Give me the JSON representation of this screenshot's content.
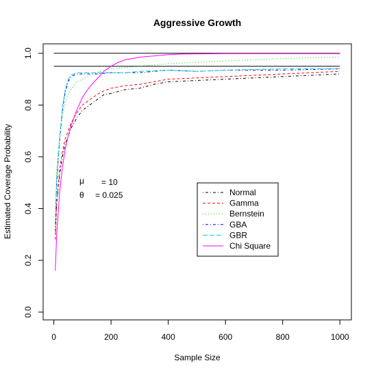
{
  "chart_data": {
    "type": "line",
    "title": "Aggressive Growth",
    "xlabel": "Sample Size",
    "ylabel": "Estimated Coverage Probability",
    "xlim": [
      0,
      1000
    ],
    "ylim": [
      0,
      1.0
    ],
    "xticks": [
      0,
      200,
      400,
      600,
      800,
      1000
    ],
    "xtick_labels": [
      "0",
      "200",
      "400",
      "600",
      "800",
      "1000"
    ],
    "yticks": [
      0.0,
      0.2,
      0.4,
      0.6,
      0.8,
      1.0
    ],
    "ytick_labels": [
      "0.0",
      "0.2",
      "0.4",
      "0.6",
      "0.8",
      "1.0"
    ],
    "grid": false,
    "legend_position": "center-right",
    "reference_lines": [
      1.0,
      0.95
    ],
    "annotations": [
      {
        "symbol": "μ",
        "value": "= 10"
      },
      {
        "symbol": "θ",
        "value": "= 0.025"
      }
    ],
    "series": [
      {
        "name": "Normal",
        "color": "#000000",
        "dash": "dotdash",
        "x": [
          5,
          10,
          20,
          30,
          40,
          50,
          60,
          80,
          100,
          125,
          150,
          175,
          200,
          250,
          300,
          350,
          400,
          500,
          600,
          700,
          800,
          900,
          1000
        ],
        "y": [
          0.3,
          0.42,
          0.53,
          0.6,
          0.65,
          0.68,
          0.71,
          0.75,
          0.78,
          0.8,
          0.82,
          0.84,
          0.845,
          0.86,
          0.865,
          0.88,
          0.89,
          0.895,
          0.9,
          0.905,
          0.91,
          0.915,
          0.92
        ]
      },
      {
        "name": "Gamma",
        "color": "#ff0000",
        "dash": "dashed",
        "x": [
          5,
          10,
          20,
          30,
          40,
          50,
          60,
          80,
          100,
          125,
          150,
          175,
          200,
          250,
          300,
          350,
          400,
          500,
          600,
          700,
          800,
          900,
          1000
        ],
        "y": [
          0.28,
          0.42,
          0.55,
          0.62,
          0.67,
          0.7,
          0.73,
          0.77,
          0.8,
          0.82,
          0.84,
          0.855,
          0.865,
          0.875,
          0.88,
          0.89,
          0.9,
          0.905,
          0.91,
          0.915,
          0.92,
          0.925,
          0.93
        ]
      },
      {
        "name": "Bernstein",
        "color": "#00cc00",
        "dash": "dotted",
        "x": [
          5,
          10,
          20,
          30,
          40,
          50,
          60,
          80,
          100,
          125,
          150,
          175,
          200,
          250,
          300,
          400,
          500,
          600,
          700,
          800,
          900,
          1000
        ],
        "y": [
          0.4,
          0.55,
          0.68,
          0.76,
          0.81,
          0.84,
          0.86,
          0.89,
          0.9,
          0.915,
          0.925,
          0.935,
          0.94,
          0.945,
          0.95,
          0.96,
          0.965,
          0.97,
          0.975,
          0.98,
          0.983,
          0.985
        ]
      },
      {
        "name": "GBA",
        "color": "#0000ff",
        "dash": "dotdash",
        "x": [
          5,
          10,
          20,
          30,
          40,
          50,
          60,
          70,
          80,
          100,
          150,
          200,
          250,
          300,
          400,
          500,
          600,
          800,
          1000
        ],
        "y": [
          0.33,
          0.5,
          0.66,
          0.78,
          0.85,
          0.89,
          0.91,
          0.915,
          0.92,
          0.92,
          0.92,
          0.925,
          0.925,
          0.925,
          0.935,
          0.93,
          0.935,
          0.935,
          0.94
        ]
      },
      {
        "name": "GBR",
        "color": "#00cccc",
        "dash": "longdash",
        "x": [
          5,
          10,
          20,
          30,
          40,
          50,
          60,
          70,
          80,
          100,
          150,
          200,
          250,
          300,
          400,
          500,
          600,
          800,
          1000
        ],
        "y": [
          0.34,
          0.51,
          0.67,
          0.79,
          0.86,
          0.9,
          0.915,
          0.92,
          0.925,
          0.925,
          0.925,
          0.925,
          0.925,
          0.93,
          0.935,
          0.93,
          0.935,
          0.94,
          0.94
        ]
      },
      {
        "name": "Chi Square",
        "color": "#ff00ff",
        "dash": "solid",
        "x": [
          5,
          10,
          20,
          30,
          40,
          50,
          60,
          80,
          100,
          125,
          150,
          175,
          200,
          225,
          250,
          300,
          350,
          400,
          450,
          500,
          600,
          700,
          800,
          900,
          1000
        ],
        "y": [
          0.16,
          0.3,
          0.46,
          0.56,
          0.63,
          0.68,
          0.72,
          0.78,
          0.83,
          0.87,
          0.9,
          0.93,
          0.95,
          0.965,
          0.975,
          0.985,
          0.99,
          0.995,
          0.997,
          0.998,
          0.999,
          0.999,
          0.999,
          0.999,
          0.999
        ]
      }
    ]
  }
}
